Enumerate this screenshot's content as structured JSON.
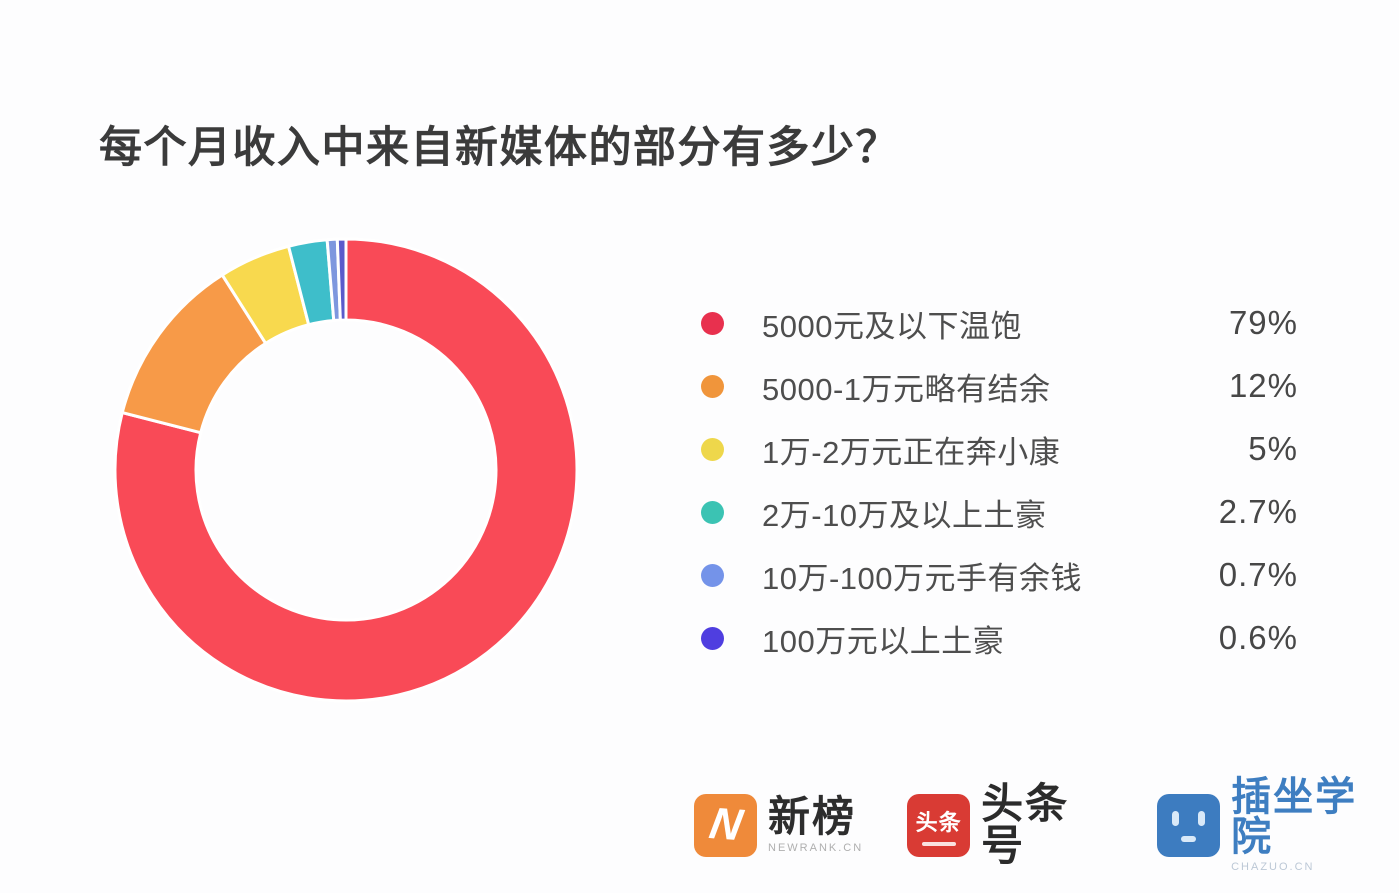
{
  "title": "每个月收入中来自新媒体的部分有多少？",
  "background_color": "#FDFDFE",
  "chart_data": {
    "type": "pie",
    "subtype": "donut",
    "title": "每个月收入中来自新媒体的部分有多少？",
    "legend_position": "right",
    "direction": "clockwise",
    "start_angle_deg": 0,
    "inner_radius_ratio": 0.65,
    "gap_stroke_color": "#FFFFFF",
    "categories": [
      "5000元及以下温饱",
      "5000-1万元略有结余",
      "1万-2万元正在奔小康",
      "2万-10万及以上土豪",
      "10万-100万元手有余钱",
      "100万元以上土豪"
    ],
    "values": [
      79,
      12,
      5,
      2.7,
      0.7,
      0.6
    ],
    "unit": "%",
    "display_values": [
      "79%",
      "12%",
      "5%",
      "2.7%",
      "0.7%",
      "0.6%"
    ],
    "slice_colors": [
      "#F94A57",
      "#F79A48",
      "#F8D94E",
      "#3EBECA",
      "#7E97DE",
      "#5B5BCB"
    ],
    "dot_colors": [
      "#E8304E",
      "#F0953B",
      "#EED74B",
      "#3BC3B3",
      "#7493E9",
      "#4F3EE0"
    ]
  },
  "footer": {
    "brands": {
      "newrank": {
        "icon_letter": "N",
        "name": "新榜",
        "sub": "NEWRANK.CN",
        "icon_color": "#EF8A3A"
      },
      "toutiao": {
        "icon_label": "头条",
        "name": "头条号",
        "icon_color": "#D93B34"
      },
      "chazuo": {
        "name": "插坐学院",
        "sub": "CHAZUO.CN",
        "icon_color": "#3D7CC0"
      }
    }
  }
}
